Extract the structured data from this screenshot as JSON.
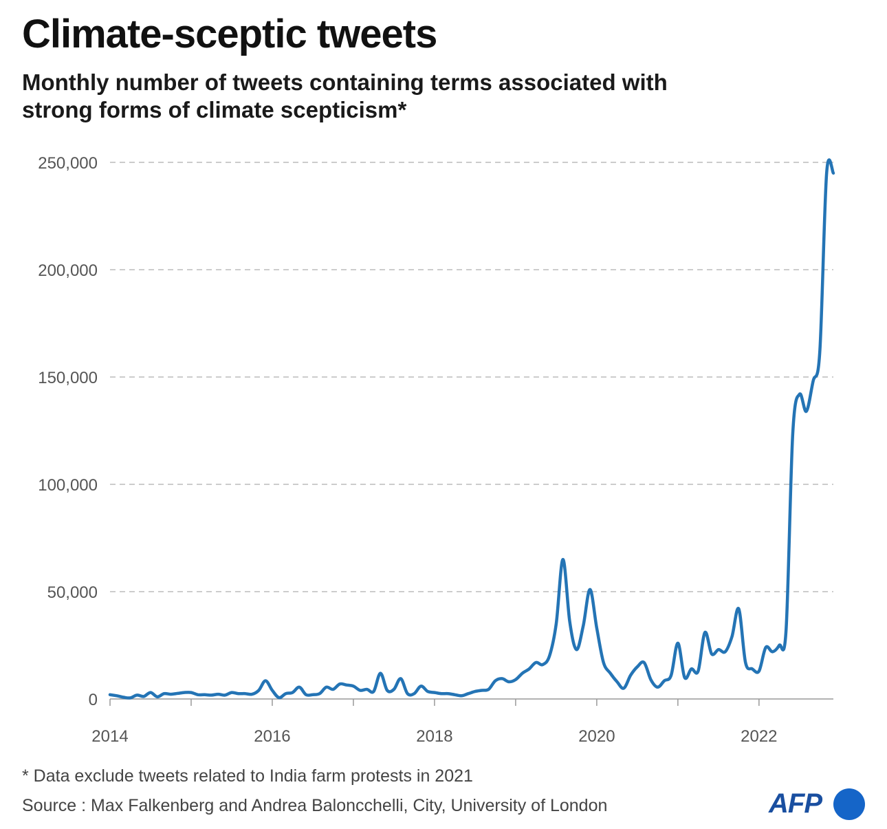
{
  "header": {
    "title": "Climate-sceptic tweets",
    "subtitle": "Monthly number of tweets containing terms associated with strong forms of climate scepticism*"
  },
  "footer": {
    "note": "* Data exclude tweets related to India farm protests in 2021",
    "source": "Source : Max Falkenberg and Andrea Baloncchelli, City, University of London",
    "logo_text": "AFP"
  },
  "colors": {
    "line": "#2474b5",
    "grid": "#bbbbbb",
    "axis": "#999999",
    "logo": "#1565c8"
  },
  "chart_data": {
    "type": "line",
    "title": "Climate-sceptic tweets",
    "xlabel": "",
    "ylabel": "",
    "ylim": [
      0,
      250000
    ],
    "xlim": [
      "2014-01",
      "2022-12"
    ],
    "y_ticks": [
      0,
      50000,
      100000,
      150000,
      200000,
      250000
    ],
    "y_tick_labels": [
      "0",
      "50,000",
      "100,000",
      "150,000",
      "200,000",
      "250,000"
    ],
    "x_ticks": [
      "2014-01",
      "2016-01",
      "2018-01",
      "2020-01",
      "2022-01"
    ],
    "x_tick_labels": [
      "2014",
      "2016",
      "2018",
      "2020",
      "2022"
    ],
    "grid": "horizontal dashed",
    "series": [
      {
        "x": [
          "2014-01",
          "2014-02",
          "2014-03",
          "2014-04",
          "2014-05",
          "2014-06",
          "2014-07",
          "2014-08",
          "2014-09",
          "2014-10",
          "2014-11",
          "2014-12",
          "2015-01",
          "2015-02",
          "2015-03",
          "2015-04",
          "2015-05",
          "2015-06",
          "2015-07",
          "2015-08",
          "2015-09",
          "2015-10",
          "2015-11",
          "2015-12",
          "2016-01",
          "2016-02",
          "2016-03",
          "2016-04",
          "2016-05",
          "2016-06",
          "2016-07",
          "2016-08",
          "2016-09",
          "2016-10",
          "2016-11",
          "2016-12",
          "2017-01",
          "2017-02",
          "2017-03",
          "2017-04",
          "2017-05",
          "2017-06",
          "2017-07",
          "2017-08",
          "2017-09",
          "2017-10",
          "2017-11",
          "2017-12",
          "2018-01",
          "2018-02",
          "2018-03",
          "2018-04",
          "2018-05",
          "2018-06",
          "2018-07",
          "2018-08",
          "2018-09",
          "2018-10",
          "2018-11",
          "2018-12",
          "2019-01",
          "2019-02",
          "2019-03",
          "2019-04",
          "2019-05",
          "2019-06",
          "2019-07",
          "2019-08",
          "2019-09",
          "2019-10",
          "2019-11",
          "2019-12",
          "2020-01",
          "2020-02",
          "2020-03",
          "2020-04",
          "2020-05",
          "2020-06",
          "2020-07",
          "2020-08",
          "2020-09",
          "2020-10",
          "2020-11",
          "2020-12",
          "2021-01",
          "2021-02",
          "2021-03",
          "2021-04",
          "2021-05",
          "2021-06",
          "2021-07",
          "2021-08",
          "2021-09",
          "2021-10",
          "2021-11",
          "2021-12",
          "2022-01",
          "2022-02",
          "2022-03",
          "2022-04",
          "2022-05",
          "2022-06",
          "2022-07",
          "2022-08",
          "2022-09",
          "2022-10",
          "2022-11",
          "2022-12"
        ],
        "values": [
          2000,
          1500,
          800,
          500,
          1800,
          1200,
          3000,
          1000,
          2500,
          2200,
          2600,
          3000,
          3000,
          2000,
          2000,
          1800,
          2200,
          1800,
          3000,
          2500,
          2500,
          2200,
          4000,
          8500,
          4000,
          600,
          2500,
          3000,
          5500,
          2000,
          2000,
          2500,
          5500,
          4500,
          7000,
          6500,
          6000,
          4000,
          4500,
          3500,
          12000,
          4000,
          4500,
          9500,
          2500,
          2500,
          6000,
          3500,
          3000,
          2500,
          2500,
          2000,
          1500,
          2500,
          3500,
          4000,
          4500,
          8500,
          9500,
          8000,
          9000,
          12000,
          14000,
          17000,
          16000,
          20000,
          35000,
          65000,
          36000,
          23000,
          34000,
          51000,
          33000,
          17000,
          12000,
          8000,
          5000,
          11000,
          15000,
          17000,
          9000,
          5500,
          8500,
          11000,
          26000,
          10000,
          14000,
          13000,
          31000,
          21000,
          23000,
          22000,
          29000,
          42000,
          17000,
          14000,
          13000,
          24000,
          22000,
          25000,
          32000,
          124000,
          142000,
          134000,
          148000,
          162000,
          245000,
          245000
        ]
      }
    ]
  }
}
